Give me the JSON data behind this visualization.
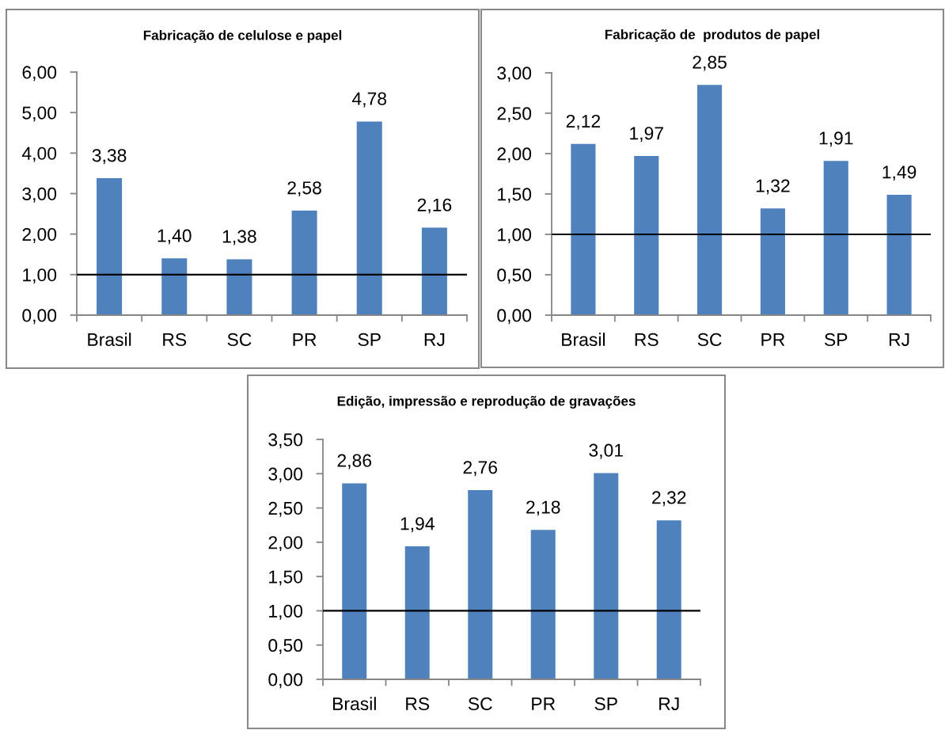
{
  "chart_data": [
    {
      "type": "bar",
      "title": "Fabricação de celulose e papel",
      "categories": [
        "Brasil",
        "RS",
        "SC",
        "PR",
        "SP",
        "RJ"
      ],
      "values": [
        3.38,
        1.4,
        1.38,
        2.58,
        4.78,
        2.16
      ],
      "value_labels": [
        "3,38",
        "1,40",
        "1,38",
        "2,58",
        "4,78",
        "2,16"
      ],
      "color": "#4f81bd",
      "ylim": [
        0,
        6
      ],
      "yticks": [
        {
          "value": 0,
          "label": "0,00"
        },
        {
          "value": 1,
          "label": "1,00"
        },
        {
          "value": 2,
          "label": "2,00"
        },
        {
          "value": 3,
          "label": "3,00"
        },
        {
          "value": 4,
          "label": "4,00"
        },
        {
          "value": 5,
          "label": "5,00"
        },
        {
          "value": 6,
          "label": "6,00"
        }
      ],
      "ref_lines": [
        {
          "axis": "y",
          "value": 1,
          "color": "#000000"
        }
      ]
    },
    {
      "type": "bar",
      "title": "Fabricação de  produtos de papel",
      "categories": [
        "Brasil",
        "RS",
        "SC",
        "PR",
        "SP",
        "RJ"
      ],
      "values": [
        2.12,
        1.97,
        2.85,
        1.32,
        1.91,
        1.49
      ],
      "value_labels": [
        "2,12",
        "1,97",
        "2,85",
        "1,32",
        "1,91",
        "1,49"
      ],
      "color": "#4f81bd",
      "ylim": [
        0,
        3
      ],
      "yticks": [
        {
          "value": 0,
          "label": "0,00"
        },
        {
          "value": 0.5,
          "label": "0,50"
        },
        {
          "value": 1,
          "label": "1,00"
        },
        {
          "value": 1.5,
          "label": "1,50"
        },
        {
          "value": 2,
          "label": "2,00"
        },
        {
          "value": 2.5,
          "label": "2,50"
        },
        {
          "value": 3,
          "label": "3,00"
        }
      ],
      "ref_lines": [
        {
          "axis": "y",
          "value": 1,
          "color": "#000000"
        }
      ]
    },
    {
      "type": "bar",
      "title": "Edição, impressão e reprodução de gravações",
      "categories": [
        "Brasil",
        "RS",
        "SC",
        "PR",
        "SP",
        "RJ"
      ],
      "values": [
        2.86,
        1.94,
        2.76,
        2.18,
        3.01,
        2.32
      ],
      "value_labels": [
        "2,86",
        "1,94",
        "2,76",
        "2,18",
        "3,01",
        "2,32"
      ],
      "color": "#4f81bd",
      "ylim": [
        0,
        3.5
      ],
      "yticks": [
        {
          "value": 0,
          "label": "0,00"
        },
        {
          "value": 0.5,
          "label": "0,50"
        },
        {
          "value": 1,
          "label": "1,00"
        },
        {
          "value": 1.5,
          "label": "1,50"
        },
        {
          "value": 2,
          "label": "2,00"
        },
        {
          "value": 2.5,
          "label": "2,50"
        },
        {
          "value": 3,
          "label": "3,00"
        },
        {
          "value": 3.5,
          "label": "3,50"
        }
      ],
      "ref_lines": [
        {
          "axis": "y",
          "value": 1,
          "color": "#000000"
        }
      ]
    }
  ]
}
